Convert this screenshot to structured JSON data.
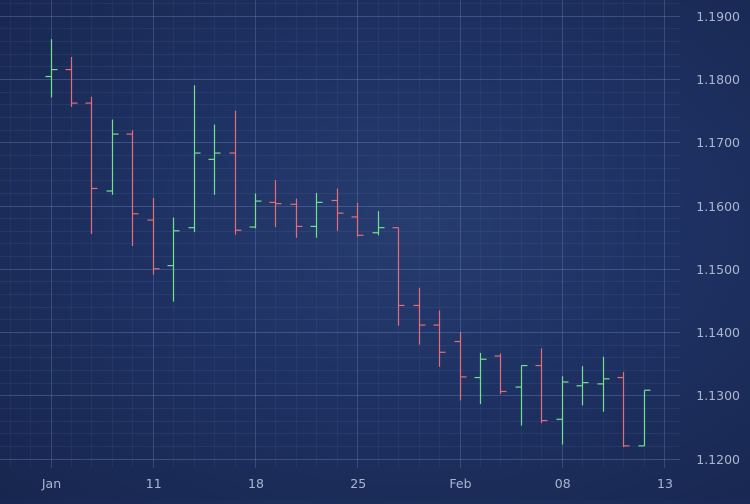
{
  "chart_data": {
    "type": "ohlc",
    "title": "",
    "xlabel": "",
    "ylabel": "",
    "ylim": [
      1.1185,
      1.1925
    ],
    "grid": true,
    "y_ticks": [
      "1.1200",
      "1.1300",
      "1.1400",
      "1.1500",
      "1.1600",
      "1.1700",
      "1.1800",
      "1.1900"
    ],
    "x_ticks": [
      {
        "label": "Jan",
        "index": 0
      },
      {
        "label": "11",
        "index": 5
      },
      {
        "label": "18",
        "index": 10
      },
      {
        "label": "25",
        "index": 15
      },
      {
        "label": "Feb",
        "index": 20
      },
      {
        "label": "08",
        "index": 25
      },
      {
        "label": "13",
        "index": 30
      }
    ],
    "up_color": "#6fe38b",
    "down_color": "#e46d78",
    "bars": [
      {
        "o": 1.1804,
        "h": 1.1863,
        "l": 1.1771,
        "c": 1.1815
      },
      {
        "o": 1.1815,
        "h": 1.1835,
        "l": 1.1756,
        "c": 1.1762
      },
      {
        "o": 1.1762,
        "h": 1.1772,
        "l": 1.1555,
        "c": 1.1627
      },
      {
        "o": 1.1623,
        "h": 1.1736,
        "l": 1.1617,
        "c": 1.1713
      },
      {
        "o": 1.1713,
        "h": 1.1719,
        "l": 1.1536,
        "c": 1.1587
      },
      {
        "o": 1.1577,
        "h": 1.1612,
        "l": 1.1491,
        "c": 1.15
      },
      {
        "o": 1.1505,
        "h": 1.1581,
        "l": 1.1448,
        "c": 1.156
      },
      {
        "o": 1.1565,
        "h": 1.179,
        "l": 1.1558,
        "c": 1.1683
      },
      {
        "o": 1.1673,
        "h": 1.1728,
        "l": 1.1617,
        "c": 1.1683
      },
      {
        "o": 1.1683,
        "h": 1.175,
        "l": 1.1554,
        "c": 1.1561
      },
      {
        "o": 1.1566,
        "h": 1.1619,
        "l": 1.1564,
        "c": 1.1607
      },
      {
        "o": 1.1605,
        "h": 1.164,
        "l": 1.1566,
        "c": 1.1603
      },
      {
        "o": 1.1602,
        "h": 1.1611,
        "l": 1.1549,
        "c": 1.1567
      },
      {
        "o": 1.1567,
        "h": 1.162,
        "l": 1.1549,
        "c": 1.1605
      },
      {
        "o": 1.1608,
        "h": 1.1627,
        "l": 1.156,
        "c": 1.1588
      },
      {
        "o": 1.1582,
        "h": 1.1604,
        "l": 1.1551,
        "c": 1.1553
      },
      {
        "o": 1.1557,
        "h": 1.1591,
        "l": 1.1553,
        "c": 1.1565
      },
      {
        "o": 1.1565,
        "h": 1.1565,
        "l": 1.141,
        "c": 1.1442
      },
      {
        "o": 1.1442,
        "h": 1.147,
        "l": 1.138,
        "c": 1.1411
      },
      {
        "o": 1.1411,
        "h": 1.1434,
        "l": 1.1345,
        "c": 1.1368
      },
      {
        "o": 1.1385,
        "h": 1.14,
        "l": 1.1292,
        "c": 1.1329
      },
      {
        "o": 1.1328,
        "h": 1.1367,
        "l": 1.1286,
        "c": 1.1357
      },
      {
        "o": 1.1362,
        "h": 1.1366,
        "l": 1.1302,
        "c": 1.1306
      },
      {
        "o": 1.1313,
        "h": 1.1347,
        "l": 1.1252,
        "c": 1.1347
      },
      {
        "o": 1.1347,
        "h": 1.1374,
        "l": 1.1256,
        "c": 1.126
      },
      {
        "o": 1.1262,
        "h": 1.133,
        "l": 1.1222,
        "c": 1.1321
      },
      {
        "o": 1.1315,
        "h": 1.1346,
        "l": 1.1284,
        "c": 1.132
      },
      {
        "o": 1.1318,
        "h": 1.1361,
        "l": 1.1274,
        "c": 1.1326
      },
      {
        "o": 1.1328,
        "h": 1.1337,
        "l": 1.1218,
        "c": 1.122
      },
      {
        "o": 1.122,
        "h": 1.1308,
        "l": 1.122,
        "c": 1.1308
      }
    ]
  }
}
